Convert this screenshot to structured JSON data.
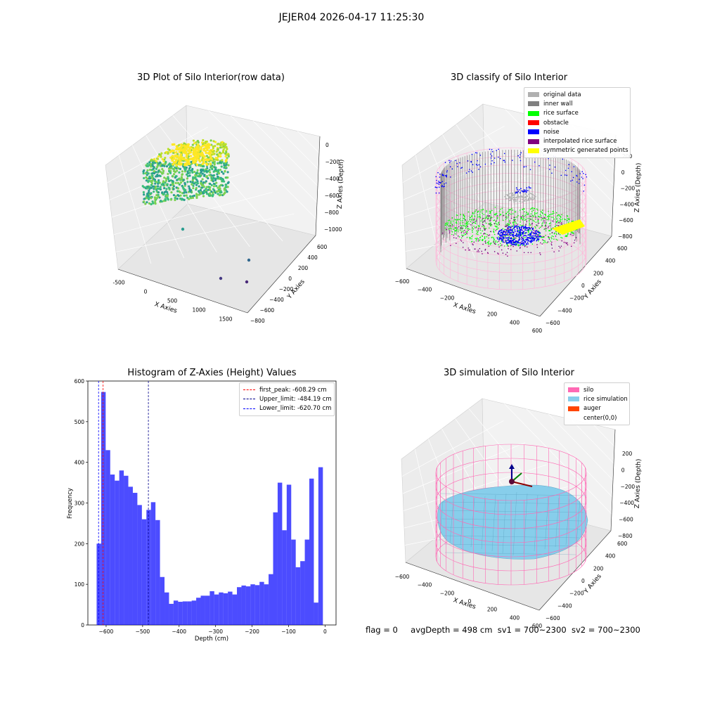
{
  "figure": {
    "title": "JEJER04 2026-04-17 11:25:30"
  },
  "panels": {
    "raw": {
      "title": "3D Plot of Silo Interior(row data)",
      "xlabel": "X Axies",
      "ylabel": "Y Axies",
      "zlabel": "Z Axies (Depth)",
      "xticks": [
        "-500",
        "0",
        "500",
        "1000",
        "1500"
      ],
      "yticks": [
        "600",
        "400",
        "200",
        "0",
        "−200",
        "−400",
        "−600",
        "−800"
      ],
      "zticks": [
        "0",
        "−200",
        "−400",
        "−600",
        "−800",
        "−1000"
      ]
    },
    "classify": {
      "title": "3D classify of Silo Interior",
      "xlabel": "X Axies",
      "ylabel": "Y Axies",
      "zlabel": "Z Axies (Depth)",
      "xticks": [
        "−600",
        "−400",
        "−200",
        "0",
        "200",
        "400",
        "600"
      ],
      "yticks": [
        "600",
        "400",
        "200",
        "0",
        "−200",
        "−400",
        "−600"
      ],
      "zticks": [
        "200",
        "0",
        "−200",
        "−400",
        "−600",
        "−800"
      ],
      "legend": [
        {
          "label": "original data",
          "color": "#b0b0b0"
        },
        {
          "label": "inner wall",
          "color": "#808080"
        },
        {
          "label": "rice surface",
          "color": "#00ff00"
        },
        {
          "label": "obstacle",
          "color": "#ff0000"
        },
        {
          "label": "noise",
          "color": "#0000ff"
        },
        {
          "label": "interpolated rice surface",
          "color": "#800080"
        },
        {
          "label": "symmetric generated points",
          "color": "#ffff00"
        }
      ]
    },
    "simulation": {
      "title": "3D simulation of Silo Interior",
      "xlabel": "X Axies",
      "ylabel": "Y Axies",
      "zlabel": "Z Axies (Depth)",
      "xticks": [
        "−600",
        "−400",
        "−200",
        "0",
        "200",
        "400",
        "600"
      ],
      "yticks": [
        "600",
        "400",
        "200",
        "0",
        "−200",
        "−400",
        "−600"
      ],
      "zticks": [
        "200",
        "0",
        "−200",
        "−400",
        "−600",
        "−800"
      ],
      "legend": [
        {
          "label": "silo",
          "color": "#ff69b4"
        },
        {
          "label": "rice simulation",
          "color": "#87ceeb"
        },
        {
          "label": "auger",
          "color": "#ff4500"
        },
        {
          "label": "center(0,0)",
          "color": ""
        }
      ]
    }
  },
  "status": {
    "flag": "flag = 0",
    "avg_depth": "avgDepth = 498 cm",
    "sv1": "sv1 = 700~2300",
    "sv2": "sv2 = 700~2300"
  },
  "chart_data": [
    {
      "type": "bar",
      "title": "Histogram of Z-Axies (Height) Values",
      "xlabel": "Depth (cm)",
      "ylabel": "Frequency",
      "xlim": [
        -650,
        30
      ],
      "ylim": [
        0,
        600
      ],
      "xticks": [
        -600,
        -500,
        -400,
        -300,
        -200,
        -100,
        0
      ],
      "yticks": [
        0,
        100,
        200,
        300,
        400,
        500,
        600
      ],
      "bin_start": -626,
      "bin_width": 12.4,
      "values": [
        200,
        573,
        430,
        370,
        355,
        380,
        367,
        340,
        325,
        295,
        260,
        283,
        302,
        258,
        118,
        80,
        52,
        60,
        57,
        58,
        58,
        60,
        67,
        72,
        72,
        83,
        75,
        80,
        78,
        82,
        75,
        93,
        97,
        95,
        100,
        98,
        106,
        100,
        125,
        277,
        350,
        233,
        345,
        210,
        142,
        157,
        210,
        360,
        55,
        388
      ],
      "bar_color": "#0000ff",
      "vlines": [
        {
          "label": "first_peak: -608.29 cm",
          "x": -608.29,
          "color": "#ff0000"
        },
        {
          "label": "Upper_limit: -484.19 cm",
          "x": -484.19,
          "color": "#00008b"
        },
        {
          "label": "Lower_limit: -620.70 cm",
          "x": -620.7,
          "color": "#0000ff"
        }
      ],
      "legend_position": "upper-right"
    }
  ]
}
